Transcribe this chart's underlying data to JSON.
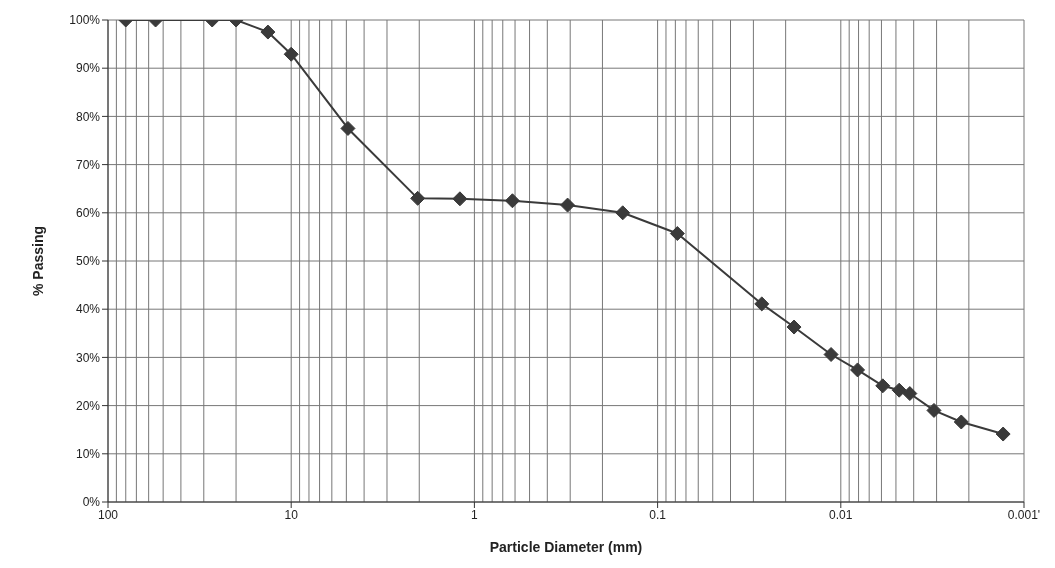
{
  "chart_data": {
    "type": "line",
    "xlabel": "Particle Diameter (mm)",
    "ylabel": "% Passing",
    "log": "x",
    "grid": true,
    "marker": "diamond",
    "line_style": "solid",
    "legend": false,
    "xlim": [
      100,
      0.001
    ],
    "xticks": [
      100,
      10,
      1,
      0.1,
      0.01,
      {
        "value": 0.001,
        "label": "0.001'"
      }
    ],
    "ylim": [
      0,
      100
    ],
    "yticks": [
      {
        "value": 0,
        "label": "0%"
      },
      {
        "value": 10,
        "label": "10%"
      },
      {
        "value": 20,
        "label": "20%"
      },
      {
        "value": 30,
        "label": "30%"
      },
      {
        "value": 40,
        "label": "40%"
      },
      {
        "value": 50,
        "label": "50%"
      },
      {
        "value": 60,
        "label": "60%"
      },
      {
        "value": 70,
        "label": "70%"
      },
      {
        "value": 80,
        "label": "80%"
      },
      {
        "value": 90,
        "label": "90%"
      },
      {
        "value": 100,
        "label": "100%"
      }
    ],
    "x": [
      80,
      55,
      27,
      20,
      13.4,
      10,
      4.9,
      2.04,
      1.2,
      0.62,
      0.31,
      0.155,
      0.078,
      0.027,
      0.018,
      0.0113,
      0.0081,
      0.0059,
      0.0048,
      0.0042,
      0.0031,
      0.0022,
      0.0013
    ],
    "series": [
      {
        "color": "#3a3a3a",
        "values": [
          100,
          100,
          100,
          100,
          97.5,
          92.9,
          77.5,
          63,
          62.9,
          62.5,
          61.6,
          60,
          55.7,
          41.1,
          36.3,
          30.6,
          27.4,
          24.1,
          23.2,
          22.5,
          19,
          16.6,
          14.1
        ]
      }
    ]
  }
}
